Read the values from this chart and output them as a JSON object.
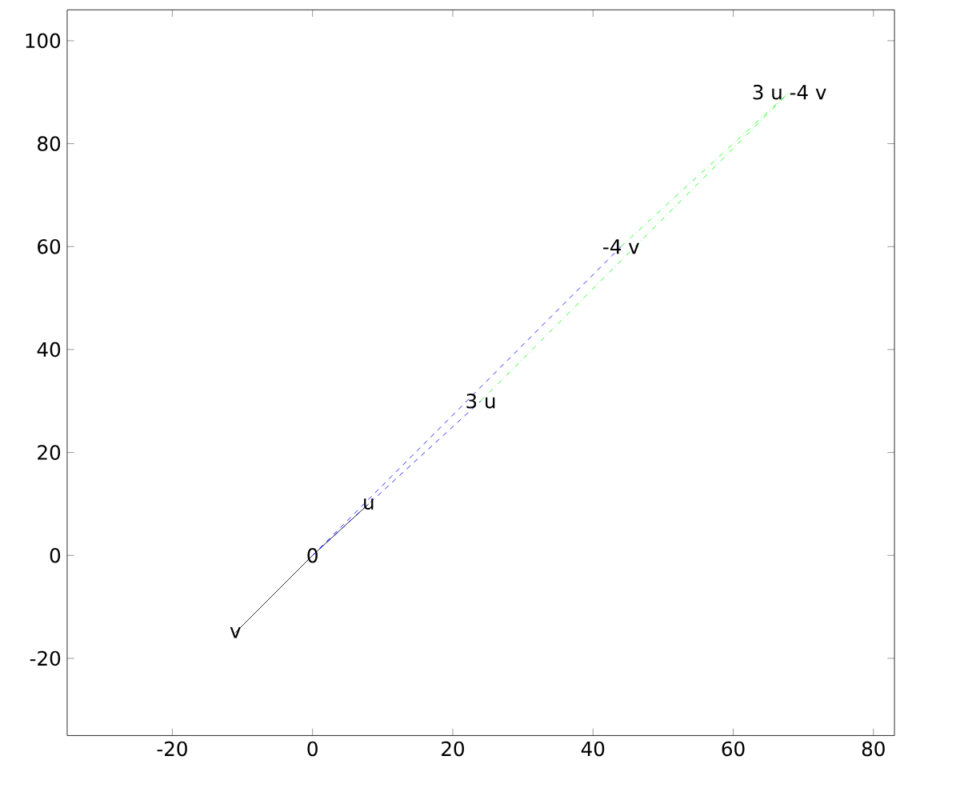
{
  "chart_data": {
    "type": "line",
    "xlim": [
      -35,
      83
    ],
    "ylim": [
      -35,
      106
    ],
    "xticks": [
      -20,
      0,
      20,
      40,
      60,
      80
    ],
    "yticks": [
      -20,
      0,
      20,
      40,
      60,
      80,
      100
    ],
    "grid": false,
    "legend": false,
    "marker": "none",
    "series": [
      {
        "color": "#000000",
        "line_style": "solid",
        "x": [
          -11,
          0,
          8
        ],
        "values": [
          -15,
          0,
          10
        ]
      },
      {
        "color": "#0000ff",
        "line_style": "dashed",
        "x": [
          0,
          24
        ],
        "values": [
          0,
          30
        ]
      },
      {
        "color": "#0000ff",
        "line_style": "dashed",
        "x": [
          0,
          44
        ],
        "values": [
          0,
          60
        ]
      },
      {
        "color": "#00ff00",
        "line_style": "dashdot",
        "x": [
          24,
          68
        ],
        "values": [
          30,
          90
        ]
      },
      {
        "color": "#00ff00",
        "line_style": "dashdot",
        "x": [
          44,
          68
        ],
        "values": [
          60,
          90
        ]
      }
    ],
    "annotations": [
      {
        "text": "0",
        "x": 0,
        "y": 0
      },
      {
        "text": "u",
        "x": 8,
        "y": 10
      },
      {
        "text": "v",
        "x": -11,
        "y": -15
      },
      {
        "text": "3 u",
        "x": 24,
        "y": 30
      },
      {
        "text": "-4 v",
        "x": 44,
        "y": 60
      },
      {
        "text": "3 u -4 v",
        "x": 68,
        "y": 90
      }
    ]
  }
}
